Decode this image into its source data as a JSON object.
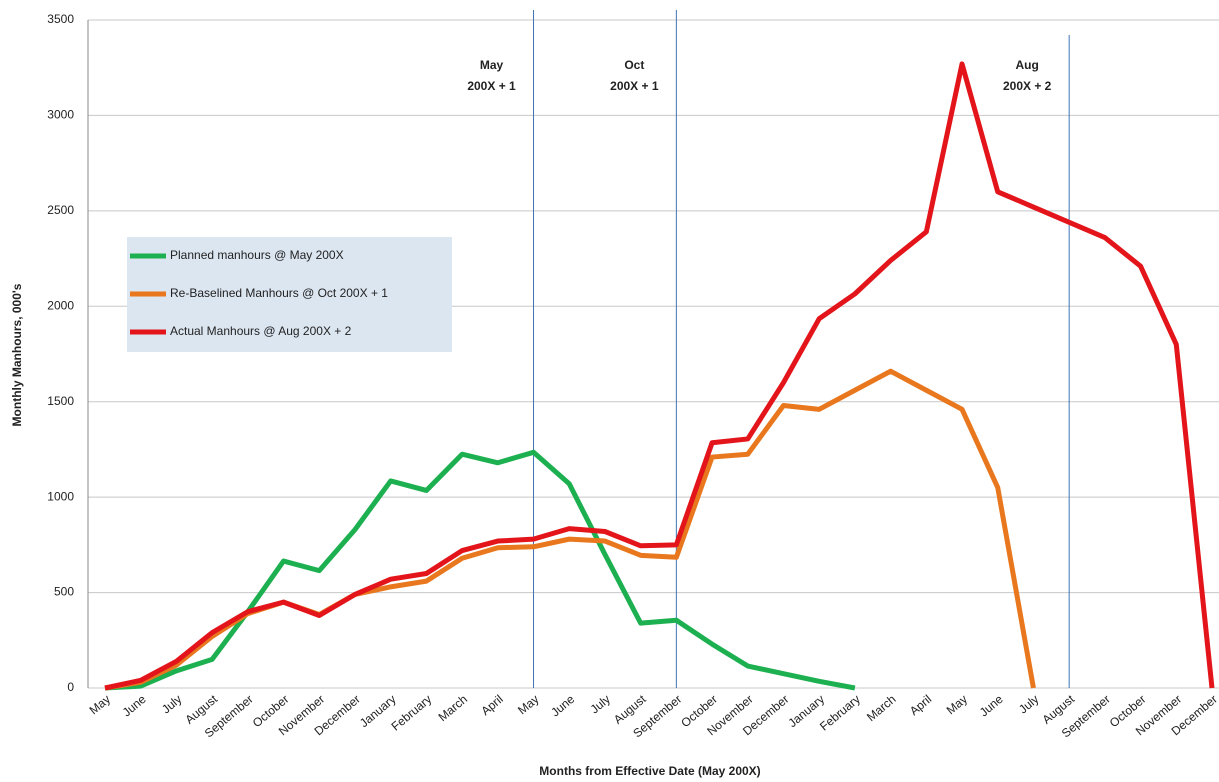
{
  "chart_data": {
    "type": "line",
    "y_label": "Monthly Manhours, 000's",
    "x_label": "Months from Effective Date (May 200X)",
    "categories": [
      "May",
      "June",
      "July",
      "August",
      "September",
      "October",
      "November",
      "December",
      "January",
      "February",
      "March",
      "April",
      "May",
      "June",
      "July",
      "August",
      "September",
      "October",
      "November",
      "December",
      "January",
      "February",
      "March",
      "April",
      "May",
      "June",
      "July",
      "August",
      "September",
      "October",
      "November",
      "December"
    ],
    "ylim": [
      0,
      3500
    ],
    "yticks": [
      0,
      500,
      1000,
      1500,
      2000,
      2500,
      3000,
      3500
    ],
    "grid": true,
    "legend": "left",
    "annotations": [
      {
        "lines": [
          "May",
          "200X + 1"
        ],
        "at": 12
      },
      {
        "lines": [
          "Oct",
          "200X + 1"
        ],
        "at": 16
      },
      {
        "lines": [
          "Aug",
          "200X + 2"
        ],
        "at": 27
      }
    ],
    "series": [
      {
        "name": "Planned manhours @ May 200X",
        "color": "#1db050",
        "values": [
          0,
          10,
          90,
          150,
          400,
          665,
          615,
          830,
          1085,
          1035,
          1225,
          1180,
          1235,
          1070,
          700,
          340,
          355,
          230,
          115,
          75,
          35,
          0,
          null,
          null,
          null,
          null,
          null,
          null,
          null,
          null,
          null,
          null
        ]
      },
      {
        "name": "Re-Baselined Manhours @ Oct 200X + 1",
        "color": "#e8771e",
        "values": [
          0,
          30,
          120,
          270,
          390,
          450,
          385,
          490,
          530,
          560,
          680,
          735,
          740,
          780,
          770,
          695,
          685,
          1210,
          1225,
          1480,
          1460,
          1560,
          1660,
          1560,
          1460,
          1050,
          0,
          null,
          null,
          null,
          null,
          null
        ]
      },
      {
        "name": "Actual Manhours @ Aug 200X + 2",
        "color": "#e3151b",
        "values": [
          0,
          40,
          140,
          290,
          400,
          450,
          380,
          490,
          570,
          600,
          720,
          770,
          780,
          835,
          820,
          745,
          750,
          1285,
          1305,
          1600,
          1935,
          2065,
          2240,
          2390,
          3270,
          2600,
          2520,
          2440,
          2360,
          2210,
          1800,
          0
        ]
      }
    ]
  }
}
